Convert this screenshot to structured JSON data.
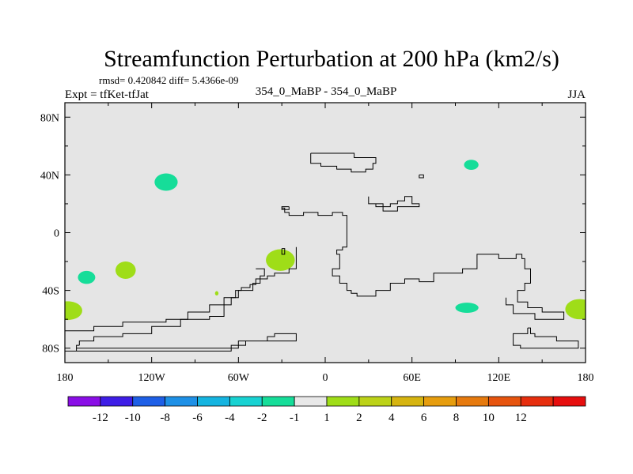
{
  "chart_data": {
    "type": "heatmap",
    "title": "Streamfunction Perturbation at 200 hPa (km2/s)",
    "stats": "rmsd= 0.420842 diff= 5.4366e-09",
    "left_label": "Expt = tfKet-tfJat",
    "center_label": "354_0_MaBP - 354_0_MaBP",
    "right_label": "JJA",
    "xlim": [
      -180,
      180
    ],
    "ylim": [
      -90,
      90
    ],
    "x_ticks": [
      {
        "value": -180,
        "label": "180"
      },
      {
        "value": -120,
        "label": "120W"
      },
      {
        "value": -60,
        "label": "60W"
      },
      {
        "value": 0,
        "label": "0"
      },
      {
        "value": 60,
        "label": "60E"
      },
      {
        "value": 120,
        "label": "120E"
      },
      {
        "value": 180,
        "label": "180"
      }
    ],
    "y_ticks": [
      {
        "value": 80,
        "label": "80N"
      },
      {
        "value": 40,
        "label": "40N"
      },
      {
        "value": 0,
        "label": "0"
      },
      {
        "value": -40,
        "label": "40S"
      },
      {
        "value": -80,
        "label": "80S"
      }
    ],
    "background_color": "#e5e5e5",
    "colorbar": {
      "colors": [
        "#8a0ee6",
        "#3e1de6",
        "#1e5fe6",
        "#1e90e6",
        "#15b4e0",
        "#18d2d2",
        "#16dd99",
        "#e8e8e8",
        "#9fdd18",
        "#bcd218",
        "#d6b410",
        "#e69d0e",
        "#e67a0e",
        "#e6540e",
        "#e62e0e",
        "#e60e0e"
      ],
      "labels": [
        "-12",
        "-10",
        "-8",
        "-6",
        "-4",
        "-2",
        "-1",
        "1",
        "2",
        "4",
        "6",
        "8",
        "10",
        "12"
      ]
    },
    "blobs": [
      {
        "lon": -110,
        "lat": 35,
        "rlon": 8,
        "rlat": 6,
        "color": "#16dd99"
      },
      {
        "lon": 101,
        "lat": 47,
        "rlon": 5,
        "rlat": 3.5,
        "color": "#16dd99"
      },
      {
        "lon": -165,
        "lat": -31,
        "rlon": 6,
        "rlat": 4.5,
        "color": "#16dd99"
      },
      {
        "lon": -138,
        "lat": -26,
        "rlon": 7,
        "rlat": 6,
        "color": "#9fdd18"
      },
      {
        "lon": -31,
        "lat": -19,
        "rlon": 10,
        "rlat": 7.5,
        "color": "#9fdd18"
      },
      {
        "lon": -75,
        "lat": -42,
        "rlon": 1.2,
        "rlat": 1.5,
        "color": "#9fdd18"
      },
      {
        "lon": -178,
        "lat": -54,
        "rlon": 10,
        "rlat": 6.5,
        "color": "#9fdd18"
      },
      {
        "lon": 176,
        "lat": -53,
        "rlon": 10,
        "rlat": 7,
        "color": "#9fdd18"
      },
      {
        "lon": 98,
        "lat": -52,
        "rlon": 8,
        "rlat": 3.5,
        "color": "#16dd99"
      }
    ],
    "coastlines": [
      [
        [
          -10,
          55
        ],
        [
          -10,
          48
        ],
        [
          -3,
          48
        ],
        [
          -3,
          46
        ],
        [
          8,
          46
        ],
        [
          8,
          44
        ],
        [
          18,
          44
        ],
        [
          18,
          42
        ],
        [
          28,
          42
        ],
        [
          28,
          44
        ],
        [
          33,
          44
        ],
        [
          33,
          48
        ],
        [
          35,
          48
        ],
        [
          35,
          52
        ],
        [
          20,
          52
        ],
        [
          20,
          55
        ],
        [
          -10,
          55
        ]
      ],
      [
        [
          65,
          40
        ],
        [
          68,
          40
        ],
        [
          68,
          38
        ],
        [
          65,
          38
        ],
        [
          65,
          40
        ]
      ],
      [
        [
          -25,
          18
        ],
        [
          -25,
          16
        ],
        [
          -30,
          16
        ],
        [
          -30,
          18
        ],
        [
          -25,
          18
        ]
      ],
      [
        [
          30,
          25
        ],
        [
          30,
          20
        ],
        [
          35,
          20
        ],
        [
          35,
          18
        ],
        [
          45,
          18
        ],
        [
          45,
          20
        ],
        [
          50,
          20
        ],
        [
          50,
          22
        ],
        [
          55,
          22
        ],
        [
          55,
          25
        ],
        [
          60,
          25
        ],
        [
          60,
          20
        ],
        [
          65,
          20
        ],
        [
          65,
          18
        ],
        [
          50,
          18
        ],
        [
          50,
          15
        ],
        [
          40,
          15
        ],
        [
          40,
          20
        ],
        [
          30,
          20
        ],
        [
          30,
          25
        ]
      ],
      [
        [
          -30,
          17
        ],
        [
          -28,
          17
        ],
        [
          -28,
          14
        ],
        [
          -25,
          14
        ],
        [
          -25,
          12
        ],
        [
          -15,
          12
        ],
        [
          -15,
          14
        ],
        [
          -5,
          14
        ],
        [
          -5,
          12
        ],
        [
          5,
          12
        ],
        [
          5,
          14
        ],
        [
          12,
          14
        ],
        [
          12,
          12
        ],
        [
          15,
          12
        ],
        [
          15,
          -10
        ],
        [
          12,
          -10
        ],
        [
          12,
          -12
        ],
        [
          8,
          -12
        ],
        [
          8,
          -15
        ],
        [
          10,
          -15
        ],
        [
          10,
          -25
        ],
        [
          5,
          -25
        ],
        [
          5,
          -30
        ],
        [
          10,
          -30
        ],
        [
          10,
          -35
        ],
        [
          15,
          -35
        ],
        [
          15,
          -40
        ],
        [
          18,
          -40
        ],
        [
          18,
          -42
        ],
        [
          22,
          -42
        ],
        [
          22,
          -44
        ],
        [
          35,
          -44
        ],
        [
          35,
          -40
        ],
        [
          45,
          -40
        ],
        [
          45,
          -35
        ],
        [
          55,
          -35
        ],
        [
          55,
          -32
        ],
        [
          65,
          -32
        ],
        [
          65,
          -34
        ],
        [
          75,
          -34
        ],
        [
          75,
          -28
        ],
        [
          95,
          -28
        ],
        [
          95,
          -25
        ],
        [
          105,
          -25
        ],
        [
          105,
          -15
        ],
        [
          120,
          -15
        ],
        [
          120,
          -18
        ],
        [
          132,
          -18
        ],
        [
          132,
          -15
        ],
        [
          136,
          -15
        ],
        [
          136,
          -18
        ],
        [
          138,
          -18
        ],
        [
          138,
          -25
        ],
        [
          142,
          -25
        ],
        [
          142,
          -35
        ],
        [
          138,
          -35
        ],
        [
          138,
          -40
        ],
        [
          133,
          -40
        ],
        [
          133,
          -48
        ],
        [
          140,
          -48
        ],
        [
          140,
          -52
        ],
        [
          150,
          -52
        ],
        [
          150,
          -55
        ],
        [
          165,
          -55
        ],
        [
          165,
          -60
        ],
        [
          145,
          -60
        ],
        [
          145,
          -56
        ],
        [
          130,
          -56
        ],
        [
          130,
          -50
        ],
        [
          125,
          -50
        ],
        [
          125,
          -45
        ]
      ],
      [
        [
          -30,
          -11
        ],
        [
          -28,
          -11
        ],
        [
          -28,
          -15
        ],
        [
          -30,
          -15
        ],
        [
          -30,
          -11
        ]
      ],
      [
        [
          -48,
          -25
        ],
        [
          -42,
          -25
        ],
        [
          -42,
          -30
        ],
        [
          -45,
          -30
        ],
        [
          -45,
          -35
        ],
        [
          -50,
          -35
        ],
        [
          -50,
          -40
        ],
        [
          -60,
          -40
        ],
        [
          -60,
          -45
        ],
        [
          -70,
          -45
        ],
        [
          -70,
          -50
        ],
        [
          -80,
          -50
        ],
        [
          -80,
          -55
        ],
        [
          -95,
          -55
        ],
        [
          -95,
          -60
        ],
        [
          -110,
          -60
        ],
        [
          -110,
          -62
        ],
        [
          -140,
          -62
        ],
        [
          -140,
          -65
        ],
        [
          -160,
          -65
        ],
        [
          -160,
          -68
        ],
        [
          -180,
          -68
        ]
      ],
      [
        [
          -20,
          -10
        ],
        [
          -20,
          -25
        ],
        [
          -25,
          -25
        ],
        [
          -25,
          -28
        ],
        [
          -35,
          -28
        ],
        [
          -35,
          -30
        ],
        [
          -40,
          -30
        ],
        [
          -40,
          -32
        ],
        [
          -48,
          -32
        ],
        [
          -48,
          -36
        ],
        [
          -52,
          -36
        ],
        [
          -52,
          -38
        ],
        [
          -58,
          -38
        ],
        [
          -58,
          -40
        ],
        [
          -62,
          -40
        ],
        [
          -62,
          -45
        ],
        [
          -65,
          -45
        ],
        [
          -65,
          -50
        ],
        [
          -70,
          -50
        ],
        [
          -70,
          -58
        ],
        [
          -80,
          -58
        ],
        [
          -80,
          -60
        ],
        [
          -100,
          -60
        ],
        [
          -100,
          -65
        ],
        [
          -120,
          -65
        ],
        [
          -120,
          -70
        ],
        [
          -140,
          -70
        ],
        [
          -140,
          -72
        ],
        [
          -160,
          -72
        ],
        [
          -160,
          -75
        ],
        [
          -170,
          -75
        ],
        [
          -170,
          -78
        ]
      ],
      [
        [
          -170,
          -78
        ],
        [
          -172,
          -78
        ],
        [
          -172,
          -82
        ]
      ],
      [
        [
          -180,
          -82
        ],
        [
          -172,
          -82
        ]
      ],
      [
        [
          -172,
          -80
        ],
        [
          -60,
          -80
        ],
        [
          -60,
          -75
        ],
        [
          -40,
          -75
        ],
        [
          -40,
          -72
        ],
        [
          -35,
          -72
        ],
        [
          -35,
          -70
        ],
        [
          -20,
          -70
        ],
        [
          -20,
          -75
        ],
        [
          -55,
          -75
        ],
        [
          -55,
          -78
        ],
        [
          -65,
          -78
        ],
        [
          -65,
          -82
        ],
        [
          -172,
          -82
        ]
      ],
      [
        [
          140,
          -66
        ],
        [
          142,
          -66
        ],
        [
          142,
          -70
        ],
        [
          145,
          -70
        ],
        [
          145,
          -72
        ],
        [
          160,
          -72
        ],
        [
          160,
          -75
        ],
        [
          175,
          -75
        ],
        [
          175,
          -80
        ],
        [
          135,
          -80
        ],
        [
          135,
          -78
        ],
        [
          130,
          -78
        ],
        [
          130,
          -70
        ],
        [
          140,
          -70
        ],
        [
          140,
          -66
        ]
      ]
    ]
  }
}
